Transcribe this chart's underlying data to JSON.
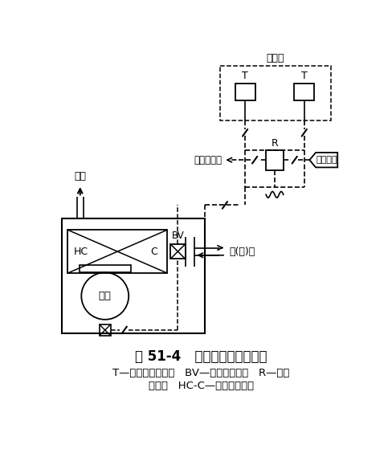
{
  "title": "图 51-4   电气式风机盘管控制",
  "caption_line1": "T—室内温度调节器   BV—小型电动球阀   R—辅助",
  "caption_line2": "继电器   HC-C—加热冷却盘管",
  "bg_color": "#ffffff",
  "line_color": "#000000"
}
